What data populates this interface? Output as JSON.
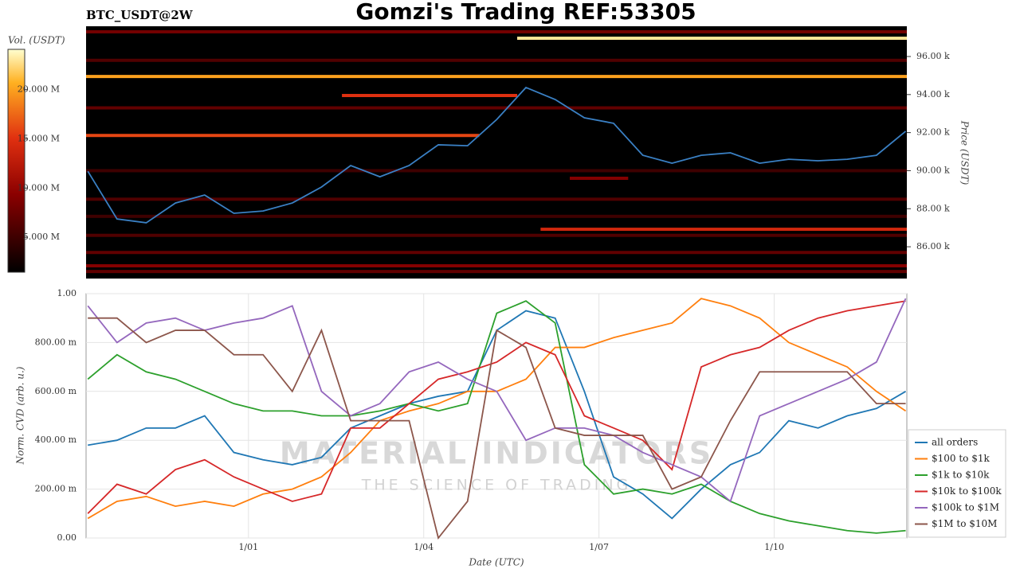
{
  "header": {
    "title": "Gomzi's Trading REF:53305"
  },
  "watermark": {
    "title": "MATERIAL INDICATORS",
    "subtitle": "THE SCIENCE OF TRADING"
  },
  "chart_data": [
    {
      "type": "heatmap",
      "title": "BTC_USDT@2W",
      "ylabel": "Price (USDT)",
      "xlim": [
        -2.78,
        11.27
      ],
      "ylim": [
        84330,
        97590
      ],
      "yticks": [
        {
          "value": 86000,
          "label": "86.00 k"
        },
        {
          "value": 88000,
          "label": "88.00 k"
        },
        {
          "value": 90000,
          "label": "90.00 k"
        },
        {
          "value": 92000,
          "label": "92.00 k"
        },
        {
          "value": 94000,
          "label": "94.00 k"
        },
        {
          "value": 96000,
          "label": "96.00 k"
        }
      ],
      "x": [
        -2.75,
        -2.25,
        -1.75,
        -1.25,
        -0.75,
        -0.25,
        0.25,
        0.75,
        1.25,
        1.75,
        2.25,
        2.75,
        3.25,
        3.75,
        4.25,
        4.75,
        5.25,
        5.75,
        6.25,
        6.75,
        7.25,
        7.75,
        8.25,
        8.75,
        9.25,
        9.75,
        10.25,
        10.75,
        11.25
      ],
      "values": [
        89970,
        87460,
        87260,
        88300,
        88720,
        87760,
        87880,
        88300,
        89140,
        90270,
        89680,
        90270,
        91360,
        91310,
        92690,
        94370,
        93740,
        92780,
        92490,
        90810,
        90390,
        90810,
        90940,
        90390,
        90600,
        90520,
        90600,
        90810,
        92070
      ],
      "color": "#3a80c4",
      "colorbar": {
        "label": "Vol. (USDT)",
        "lim": [
          1450000,
          24100000
        ],
        "ticks": [
          {
            "value": 5000000,
            "label": "5.000 M"
          },
          {
            "value": 10000000,
            "label": "10.000 M"
          },
          {
            "value": 15000000,
            "label": "15.000 M"
          },
          {
            "value": 20000000,
            "label": "20.000 M"
          }
        ]
      },
      "bands": [
        {
          "price": 97300,
          "volume": 8000000,
          "from": -2.78,
          "to": 11.27
        },
        {
          "price": 96960,
          "volume": 23000000,
          "from": 4.6,
          "to": 11.27
        },
        {
          "price": 95800,
          "volume": 6000000,
          "from": -2.78,
          "to": 11.27
        },
        {
          "price": 94950,
          "volume": 20000000,
          "from": -2.78,
          "to": 11.27
        },
        {
          "price": 93950,
          "volume": 15000000,
          "from": 1.6,
          "to": 4.6
        },
        {
          "price": 93300,
          "volume": 7000000,
          "from": -2.78,
          "to": 11.27
        },
        {
          "price": 91850,
          "volume": 16000000,
          "from": -2.78,
          "to": 3.95
        },
        {
          "price": 90000,
          "volume": 5000000,
          "from": -2.78,
          "to": 11.27
        },
        {
          "price": 89600,
          "volume": 9000000,
          "from": 5.5,
          "to": 6.5
        },
        {
          "price": 88500,
          "volume": 6000000,
          "from": -2.78,
          "to": 11.27
        },
        {
          "price": 87600,
          "volume": 5000000,
          "from": -2.78,
          "to": 11.27
        },
        {
          "price": 86920,
          "volume": 14000000,
          "from": 5.0,
          "to": 11.27
        },
        {
          "price": 86600,
          "volume": 6000000,
          "from": -2.78,
          "to": 11.27
        },
        {
          "price": 85700,
          "volume": 7000000,
          "from": -2.78,
          "to": 11.27
        },
        {
          "price": 85000,
          "volume": 9000000,
          "from": -2.78,
          "to": 11.27
        },
        {
          "price": 84700,
          "volume": 7000000,
          "from": -2.78,
          "to": 11.27
        }
      ]
    },
    {
      "type": "line",
      "xlabel": "Date (UTC)",
      "ylabel": "Norm. CVD (arb. u.)",
      "xlim": [
        -2.78,
        11.27
      ],
      "ylim": [
        0,
        1
      ],
      "grid": true,
      "xticks": [
        {
          "value": 0,
          "label": "1/01"
        },
        {
          "value": 3,
          "label": "1/04"
        },
        {
          "value": 6,
          "label": "1/07"
        },
        {
          "value": 9,
          "label": "1/10"
        }
      ],
      "yticks": [
        {
          "value": 0,
          "label": "0.00"
        },
        {
          "value": 0.2,
          "label": "200.00 m"
        },
        {
          "value": 0.4,
          "label": "400.00 m"
        },
        {
          "value": 0.6,
          "label": "600.00 m"
        },
        {
          "value": 0.8,
          "label": "800.00 m"
        },
        {
          "value": 1,
          "label": "1.00"
        }
      ],
      "x": [
        -2.75,
        -2.25,
        -1.75,
        -1.25,
        -0.75,
        -0.25,
        0.25,
        0.75,
        1.25,
        1.75,
        2.25,
        2.75,
        3.25,
        3.75,
        4.25,
        4.75,
        5.25,
        5.75,
        6.25,
        6.75,
        7.25,
        7.75,
        8.25,
        8.75,
        9.25,
        9.75,
        10.25,
        10.75,
        11.25
      ],
      "series": [
        {
          "name": "all orders",
          "color": "#1f77b4",
          "values": [
            0.38,
            0.4,
            0.45,
            0.45,
            0.5,
            0.35,
            0.32,
            0.3,
            0.33,
            0.45,
            0.5,
            0.55,
            0.58,
            0.6,
            0.85,
            0.93,
            0.9,
            0.6,
            0.25,
            0.18,
            0.08,
            0.2,
            0.3,
            0.35,
            0.48,
            0.45,
            0.5,
            0.53,
            0.6
          ]
        },
        {
          "name": "$100 to $1k",
          "color": "#ff7f0e",
          "values": [
            0.08,
            0.15,
            0.17,
            0.13,
            0.15,
            0.13,
            0.18,
            0.2,
            0.25,
            0.35,
            0.48,
            0.52,
            0.55,
            0.6,
            0.6,
            0.65,
            0.78,
            0.78,
            0.82,
            0.85,
            0.88,
            0.98,
            0.95,
            0.9,
            0.8,
            0.75,
            0.7,
            0.6,
            0.52
          ]
        },
        {
          "name": "$1k to $10k",
          "color": "#2ca02c",
          "values": [
            0.65,
            0.75,
            0.68,
            0.65,
            0.6,
            0.55,
            0.52,
            0.52,
            0.5,
            0.5,
            0.52,
            0.55,
            0.52,
            0.55,
            0.92,
            0.97,
            0.88,
            0.3,
            0.18,
            0.2,
            0.18,
            0.22,
            0.15,
            0.1,
            0.07,
            0.05,
            0.03,
            0.02,
            0.03
          ]
        },
        {
          "name": "$10k to $100k",
          "color": "#d62728",
          "values": [
            0.1,
            0.22,
            0.18,
            0.28,
            0.32,
            0.25,
            0.2,
            0.15,
            0.18,
            0.45,
            0.45,
            0.55,
            0.65,
            0.68,
            0.72,
            0.8,
            0.75,
            0.5,
            0.45,
            0.4,
            0.28,
            0.7,
            0.75,
            0.78,
            0.85,
            0.9,
            0.93,
            0.95,
            0.97
          ]
        },
        {
          "name": "$100k to $1M",
          "color": "#9467bd",
          "values": [
            0.95,
            0.8,
            0.88,
            0.9,
            0.85,
            0.88,
            0.9,
            0.95,
            0.6,
            0.5,
            0.55,
            0.68,
            0.72,
            0.65,
            0.6,
            0.4,
            0.45,
            0.45,
            0.42,
            0.35,
            0.3,
            0.25,
            0.15,
            0.5,
            0.55,
            0.6,
            0.65,
            0.72,
            0.98
          ]
        },
        {
          "name": "$1M to $10M",
          "color": "#8c564b",
          "values": [
            0.9,
            0.9,
            0.8,
            0.85,
            0.85,
            0.75,
            0.75,
            0.6,
            0.85,
            0.48,
            0.48,
            0.48,
            0.0,
            0.15,
            0.85,
            0.78,
            0.45,
            0.42,
            0.42,
            0.42,
            0.2,
            0.25,
            0.48,
            0.68,
            0.68,
            0.68,
            0.68,
            0.55,
            0.55
          ]
        }
      ]
    }
  ]
}
